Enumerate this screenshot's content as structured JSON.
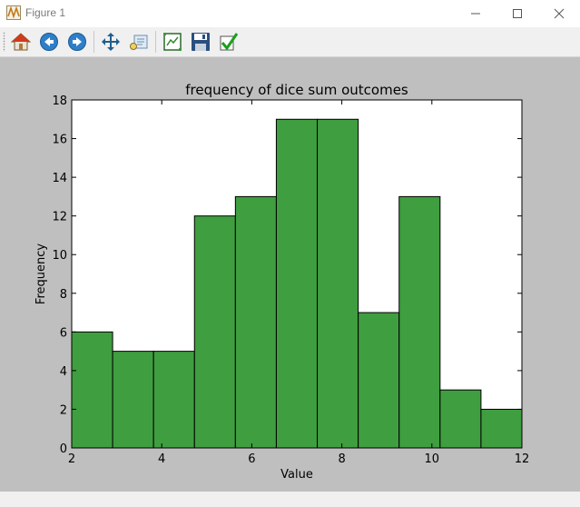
{
  "window": {
    "title": "Figure 1"
  },
  "toolbar": {
    "buttons": [
      {
        "name": "home",
        "icon": "home-icon"
      },
      {
        "name": "back",
        "icon": "back-arrow-icon"
      },
      {
        "name": "forward",
        "icon": "forward-arrow-icon"
      },
      {
        "name": "pan",
        "icon": "move-icon"
      },
      {
        "name": "zoom",
        "icon": "zoom-rect-icon"
      },
      {
        "name": "subplots",
        "icon": "configure-subplots-icon"
      },
      {
        "name": "save",
        "icon": "save-icon"
      },
      {
        "name": "edit",
        "icon": "checkmark-icon"
      }
    ]
  },
  "colors": {
    "bar": "#3f9e3f",
    "canvas": "#bfbfbf"
  },
  "chart_data": {
    "type": "bar",
    "title": "frequency of dice sum outcomes",
    "xlabel": "Value",
    "ylabel": "Frequency",
    "xlim": [
      2,
      12
    ],
    "ylim": [
      0,
      18
    ],
    "xticks": [
      2,
      4,
      6,
      8,
      10,
      12
    ],
    "yticks": [
      0,
      2,
      4,
      6,
      8,
      10,
      12,
      14,
      16,
      18
    ],
    "bins": [
      {
        "x0": 2.0,
        "x1": 2.909,
        "value": 6
      },
      {
        "x0": 2.909,
        "x1": 3.818,
        "value": 5
      },
      {
        "x0": 3.818,
        "x1": 4.727,
        "value": 5
      },
      {
        "x0": 4.727,
        "x1": 5.636,
        "value": 12
      },
      {
        "x0": 5.636,
        "x1": 6.545,
        "value": 13
      },
      {
        "x0": 6.545,
        "x1": 7.455,
        "value": 17
      },
      {
        "x0": 7.455,
        "x1": 8.364,
        "value": 17
      },
      {
        "x0": 8.364,
        "x1": 9.273,
        "value": 7
      },
      {
        "x0": 9.273,
        "x1": 10.182,
        "value": 13
      },
      {
        "x0": 10.182,
        "x1": 11.091,
        "value": 3
      },
      {
        "x0": 11.091,
        "x1": 12.0,
        "value": 2
      }
    ],
    "grid": false,
    "legend": "none"
  }
}
